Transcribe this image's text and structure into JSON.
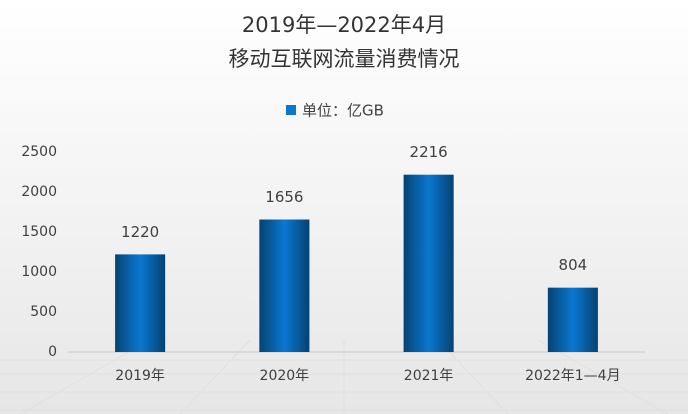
{
  "chart_data": {
    "type": "bar",
    "title": "2019年—2022年4月",
    "subtitle": "移动互联网流量消费情况",
    "legend": "单位：亿GB",
    "categories": [
      "2019年",
      "2020年",
      "2021年",
      "2022年1—4月"
    ],
    "values": [
      1220,
      1656,
      2216,
      804
    ],
    "color": "#0a78d0",
    "ylim": [
      0,
      2500
    ],
    "yticks": [
      0,
      500,
      1000,
      1500,
      2000,
      2500
    ],
    "grid": false
  }
}
